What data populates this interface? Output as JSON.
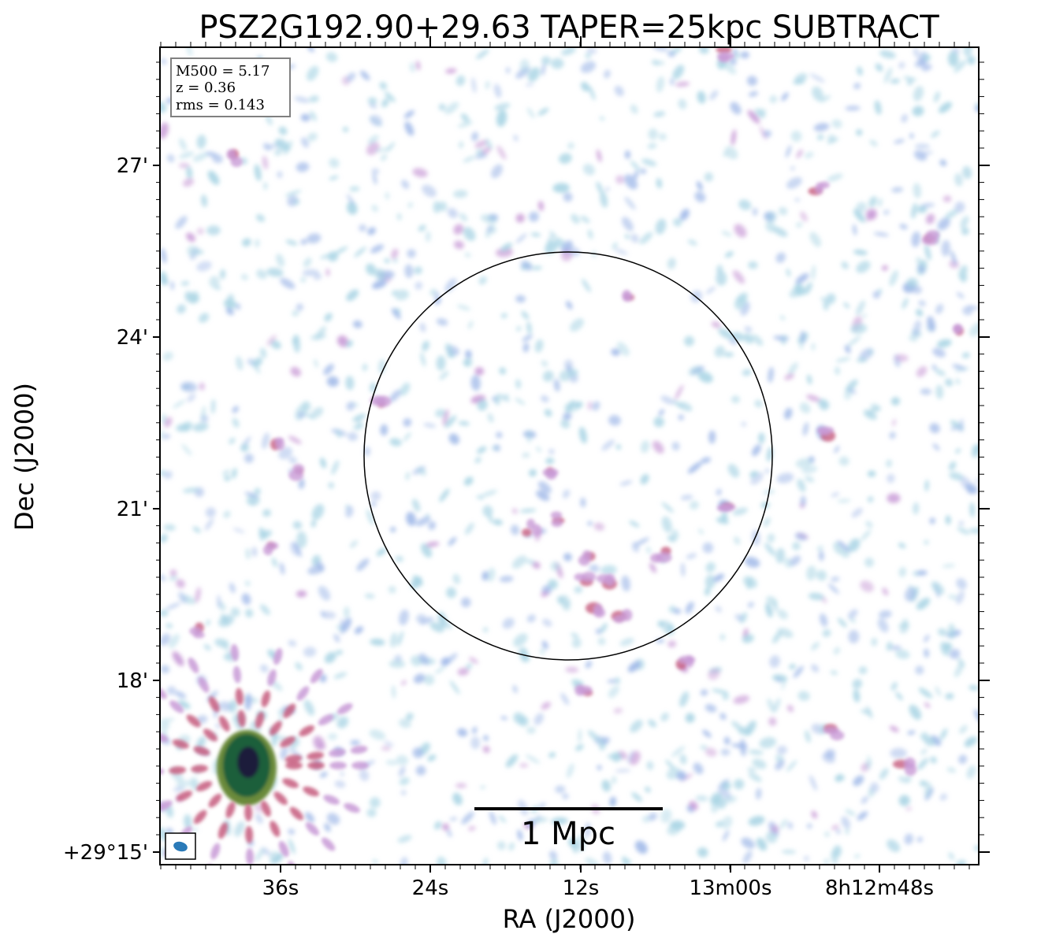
{
  "figure": {
    "title": "PSZ2G192.90+29.63 TAPER=25kpc SUBTRACT",
    "xlabel": "RA (J2000)",
    "ylabel": "Dec (J2000)",
    "x_ticks": [
      "36s",
      "24s",
      "12s",
      "13m00s",
      "8h12m48s"
    ],
    "y_ticks": [
      "27'",
      "24'",
      "21'",
      "18'",
      "+29°15'"
    ],
    "info_box": [
      "M500 = 5.17",
      "z = 0.36",
      "rms = 0.143"
    ],
    "scale_bar_label": "1 Mpc",
    "colors": {
      "faint": "#a8d4e4",
      "low": "#9fb8e8",
      "mid": "#c89ad6",
      "high": "#c65c7e",
      "source_core": "#1b1f3a",
      "source_mid": "#1f5e3a",
      "source_edge": "#6a8a3a",
      "beam": "#2a7ab8",
      "circle": "#000000"
    }
  }
}
